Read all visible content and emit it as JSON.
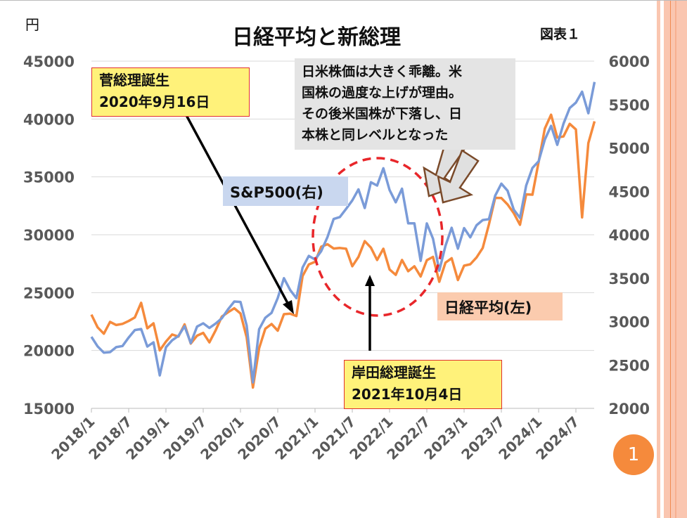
{
  "chart_data": {
    "type": "line",
    "title": "日経平均と新総理",
    "figure_label": "図表１",
    "ylabel_left": "円",
    "start_month": "2018/1",
    "x_tick_labels": [
      "2018/1",
      "2018/7",
      "2019/1",
      "2019/7",
      "2020/1",
      "2020/7",
      "2021/1",
      "2021/7",
      "2022/1",
      "2022/7",
      "2023/1",
      "2023/7",
      "2024/1",
      "2024/7"
    ],
    "ylim_left": [
      15000,
      45000
    ],
    "yticks_left": [
      15000,
      20000,
      25000,
      30000,
      35000,
      40000,
      45000
    ],
    "ylim_right": [
      2000,
      6000
    ],
    "yticks_right": [
      2000,
      2500,
      3000,
      3500,
      4000,
      4500,
      5000,
      5500,
      6000
    ],
    "grid": true,
    "series": [
      {
        "name": "日経平均(左)",
        "axis": "left",
        "color": "#F58A3C",
        "values": [
          23100,
          22000,
          21450,
          22470,
          22200,
          22300,
          22550,
          22860,
          24120,
          21920,
          22350,
          20010,
          20770,
          21380,
          21200,
          22260,
          20600,
          21280,
          21520,
          20700,
          21750,
          22930,
          23300,
          23650,
          23200,
          21140,
          16800,
          20190,
          21880,
          22290,
          21710,
          23140,
          23180,
          22980,
          26430,
          27440,
          27660,
          28970,
          29180,
          28810,
          28860,
          28790,
          27280,
          28090,
          29450,
          28890,
          27820,
          28790,
          27000,
          26530,
          27820,
          26850,
          27280,
          26390,
          27800,
          28090,
          25940,
          27590,
          27970,
          26090,
          27330,
          27450,
          28040,
          28860,
          30890,
          33190,
          33170,
          32620,
          31860,
          30860,
          33490,
          33460,
          36290,
          39170,
          40370,
          38400,
          38490,
          39580,
          39100,
          31500,
          37920,
          39800
        ]
      },
      {
        "name": "S&P500(右)",
        "axis": "right",
        "color": "#7A9BD8",
        "values": [
          2824,
          2714,
          2641,
          2648,
          2705,
          2718,
          2816,
          2902,
          2914,
          2712,
          2760,
          2380,
          2704,
          2784,
          2834,
          2946,
          2752,
          2942,
          2980,
          2926,
          2977,
          3038,
          3141,
          3231,
          3226,
          2954,
          2300,
          2912,
          3044,
          3100,
          3271,
          3500,
          3363,
          3270,
          3622,
          3756,
          3714,
          3811,
          3973,
          4181,
          4204,
          4298,
          4395,
          4523,
          4308,
          4605,
          4567,
          4766,
          4516,
          4374,
          4530,
          4132,
          4132,
          3700,
          4130,
          3955,
          3586,
          3872,
          4080,
          3840,
          4077,
          3970,
          4109,
          4169,
          4180,
          4450,
          4589,
          4508,
          4288,
          4194,
          4568,
          4770,
          4846,
          5096,
          5254,
          5036,
          5278,
          5460,
          5522,
          5648,
          5400,
          5760
        ]
      }
    ]
  },
  "annotations": {
    "suga": {
      "line1": "菅総理誕生",
      "line2": "2020年9月16日"
    },
    "kishida": {
      "line1": "岸田総理誕生",
      "line2": "2021年10月4日"
    },
    "sp_label": "S&P500(右)",
    "nikkei_label": "日経平均(左)",
    "note": [
      "日米株価は大きく乖離。米",
      "国株の過度な上げが理由。",
      "その後米国株が下落し、日",
      "本株と同レベルとなった"
    ],
    "page_number": "1"
  }
}
